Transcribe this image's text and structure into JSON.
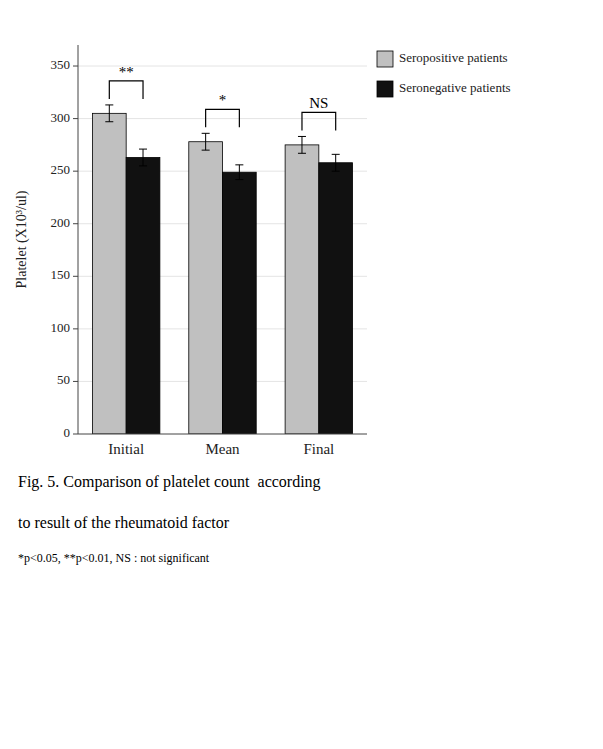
{
  "chart_data": {
    "type": "bar",
    "ylabel": "Platelet (X10³/ul)",
    "categories": [
      "Initial",
      "Mean",
      "Final"
    ],
    "series": [
      {
        "name": "Seropositive patients",
        "color": "#c0c0c0",
        "values": [
          305,
          278,
          275
        ],
        "errors": [
          8,
          8,
          8
        ]
      },
      {
        "name": "Seronegative patients",
        "color": "#111111",
        "values": [
          263,
          249,
          258
        ],
        "errors": [
          8,
          7,
          8
        ]
      }
    ],
    "ylim": [
      0,
      370
    ],
    "yticks": [
      0,
      50,
      100,
      150,
      200,
      250,
      300,
      350
    ],
    "legend": "right",
    "annotations": [
      "**",
      "*",
      "NS"
    ],
    "caption_lines": [
      "Fig. 5. Comparison of platelet count  according",
      "to result of the rheumatoid factor"
    ],
    "note": "*p<0.05, **p<0.01, NS : not significant"
  }
}
